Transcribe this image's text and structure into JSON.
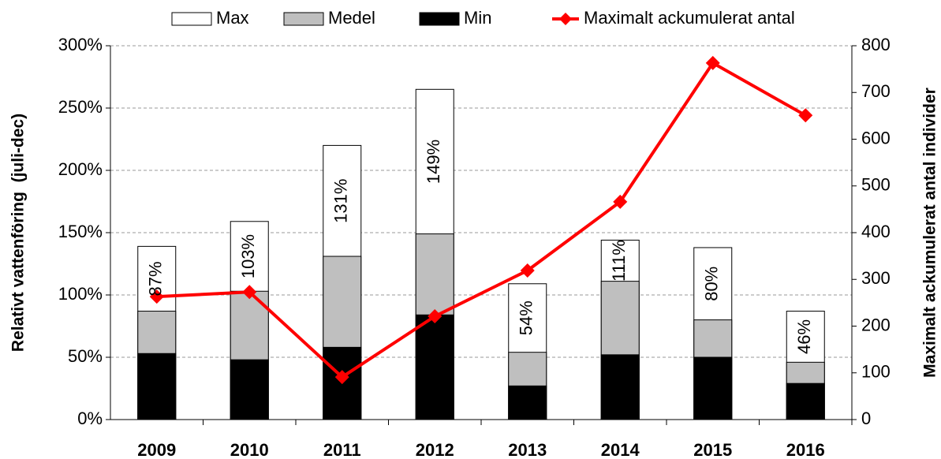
{
  "chart_data": {
    "type": "bar",
    "barmode": "overlay",
    "y_label": "Relativt vattenföring  (juli-dec)",
    "y2_label": "Maximalt ackumulerat antal individer",
    "categories": [
      "2009",
      "2010",
      "2011",
      "2012",
      "2013",
      "2014",
      "2015",
      "2016"
    ],
    "series": [
      {
        "name": "Max",
        "color": "#ffffff",
        "values": [
          139,
          159,
          220,
          265,
          109,
          144,
          138,
          87
        ]
      },
      {
        "name": "Medel",
        "color": "#bfbfbf",
        "values": [
          87,
          103,
          131,
          149,
          54,
          111,
          80,
          46
        ],
        "value_labels": [
          "87%",
          "103%",
          "131%",
          "149%",
          "54%",
          "111%",
          "80%",
          "46%"
        ]
      },
      {
        "name": "Min",
        "color": "#000000",
        "values": [
          53,
          48,
          58,
          84,
          27,
          52,
          50,
          29
        ]
      },
      {
        "name": "Maximalt ackumulerat antal",
        "color": "#ff0000",
        "type": "line",
        "axis": "y2",
        "values": [
          263,
          273,
          91,
          221,
          319,
          466,
          763,
          651
        ]
      }
    ],
    "ylim": [
      0,
      300
    ],
    "yticks": [
      {
        "value": 0,
        "label": "0%"
      },
      {
        "value": 50,
        "label": "50%"
      },
      {
        "value": 100,
        "label": "100%"
      },
      {
        "value": 150,
        "label": "150%"
      },
      {
        "value": 200,
        "label": "200%"
      },
      {
        "value": 250,
        "label": "250%"
      },
      {
        "value": 300,
        "label": "300%"
      }
    ],
    "y2lim": [
      0,
      800
    ],
    "y2ticks": [
      0,
      100,
      200,
      300,
      400,
      500,
      600,
      700,
      800
    ],
    "grid": true,
    "legend": "top"
  }
}
